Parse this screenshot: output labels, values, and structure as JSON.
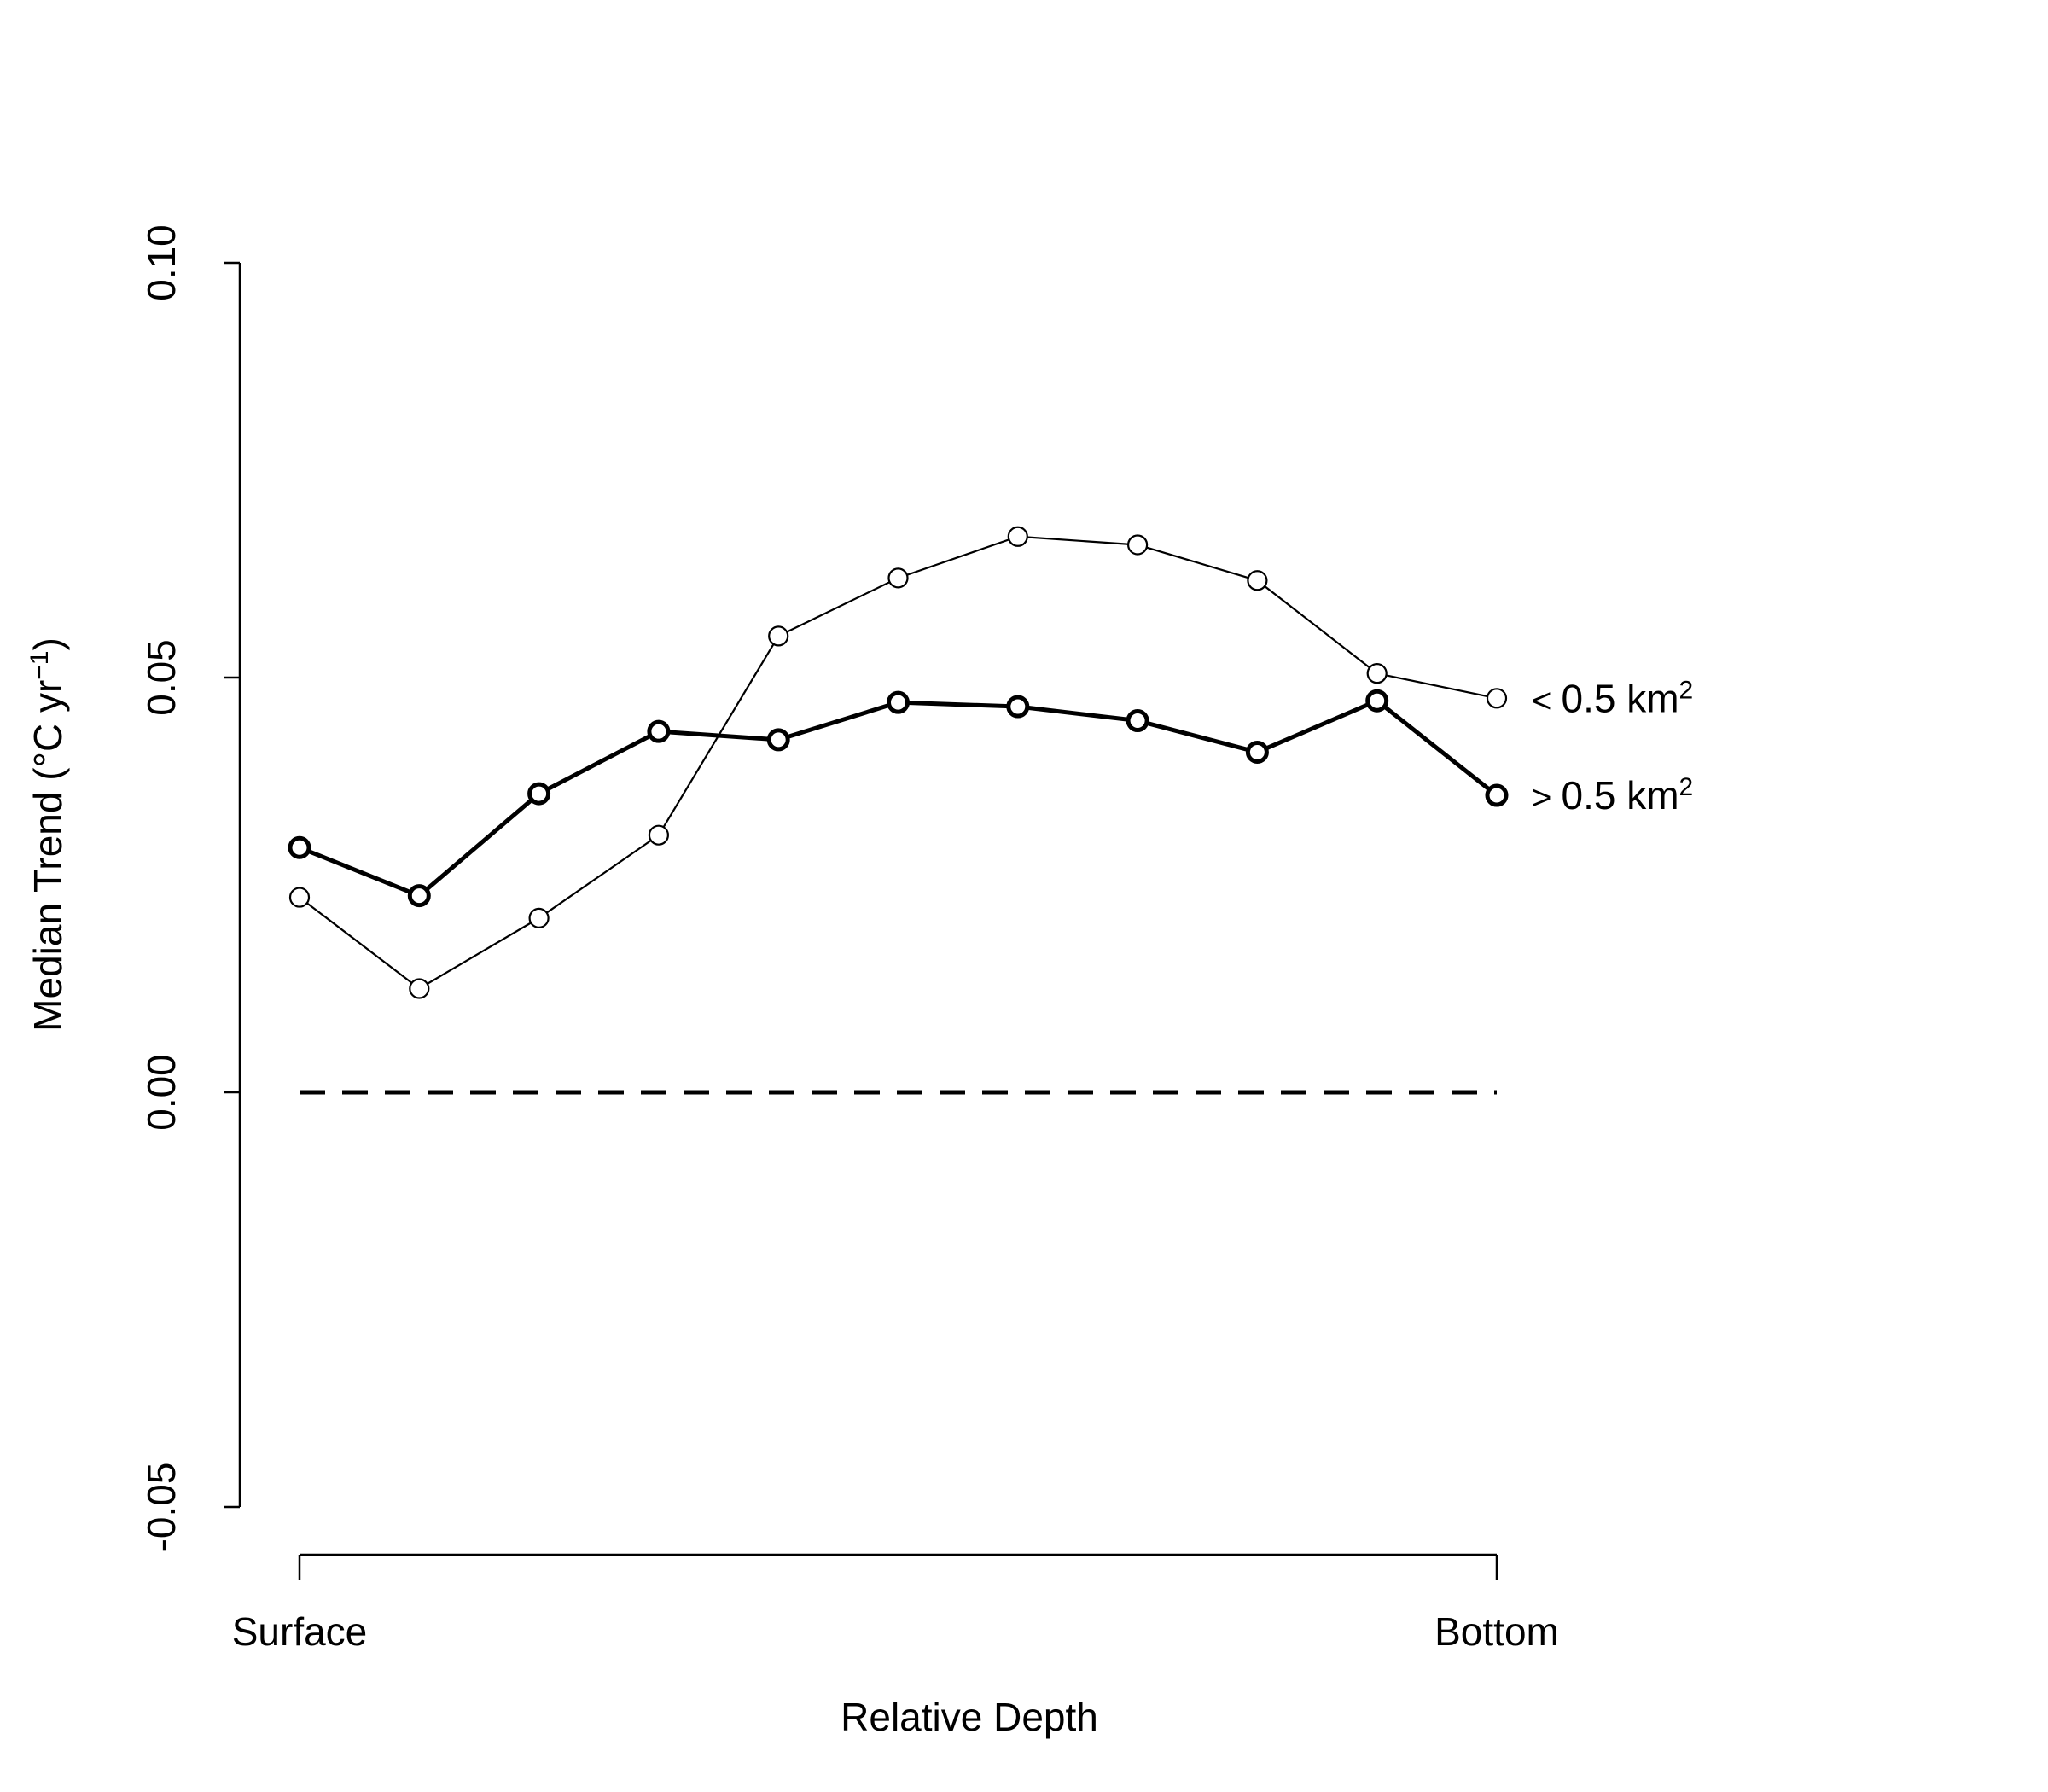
{
  "chart_data": {
    "type": "line",
    "title": "",
    "xlabel": "Relative Depth",
    "ylabel": {
      "prefix": "Median Trend (°C yr",
      "superscript": "−1",
      "suffix": ")"
    },
    "ylim": [
      -0.05,
      0.1
    ],
    "yticks": [
      "-0.05",
      "0.00",
      "0.05",
      "0.10"
    ],
    "xlim": [
      1,
      11
    ],
    "xtick_labels": [
      {
        "x": 1,
        "label": "Surface"
      },
      {
        "x": 11,
        "label": "Bottom"
      }
    ],
    "grid": false,
    "reference_line": {
      "y": 0,
      "style": "dashed"
    },
    "x": [
      1,
      2,
      3,
      4,
      5,
      6,
      7,
      8,
      9,
      10,
      11
    ],
    "series": [
      {
        "name": "< 0.5 km2",
        "label_parts": {
          "symbol": "<",
          "text": "0.5 km",
          "superscript": "2"
        },
        "weight": "thin",
        "color": "#000000",
        "marker": "open-circle",
        "values": [
          0.0235,
          0.0125,
          0.021,
          0.031,
          0.055,
          0.062,
          0.067,
          0.066,
          0.0617,
          0.0505,
          0.0475
        ]
      },
      {
        "name": "> 0.5 km2",
        "label_parts": {
          "symbol": ">",
          "text": "0.5 km",
          "superscript": "2"
        },
        "weight": "thick",
        "color": "#000000",
        "marker": "open-circle",
        "values": [
          0.0295,
          0.0237,
          0.036,
          0.0435,
          0.0425,
          0.047,
          0.0465,
          0.0448,
          0.041,
          0.0472,
          0.0358
        ]
      }
    ]
  }
}
